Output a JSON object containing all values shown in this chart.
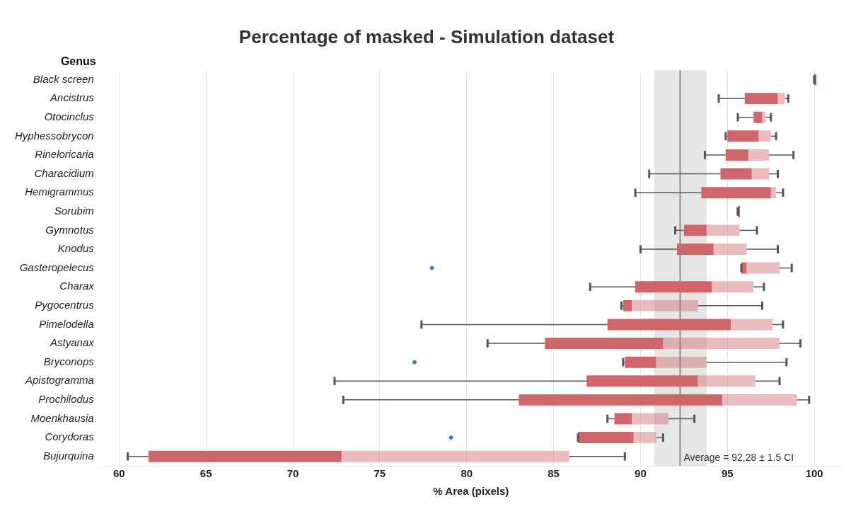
{
  "chart_data": {
    "type": "box",
    "orientation": "horizontal",
    "title": "Percentage of masked - Simulation dataset",
    "xlabel": "% Area (pixels)",
    "ylabel": "Genus",
    "categories": [
      "Black screen",
      "Ancistrus",
      "Otocinclus",
      "Hyphessobrycon",
      "Rineloricaria",
      "Characidium",
      "Hemigrammus",
      "Sorubim",
      "Gymnotus",
      "Knodus",
      "Gasteropelecus",
      "Charax",
      "Pygocentrus",
      "Pimelodella",
      "Astyanax",
      "Bryconops",
      "Apistogramma",
      "Prochilodus",
      "Moenkhausia",
      "Corydoras",
      "Bujurquina"
    ],
    "series": [
      {
        "color": "#d0666a",
        "boxes": [
          {
            "low": 100,
            "q1": 100,
            "median": 100,
            "q3": 100,
            "high": 100
          },
          {
            "low": 94.5,
            "q1": 96.0,
            "median": 97.9,
            "q3": 98.3,
            "high": 98.5
          },
          {
            "low": 95.6,
            "q1": 96.5,
            "median": 97.0,
            "q3": 97.2,
            "high": 97.5
          },
          {
            "low": 94.9,
            "q1": 95.0,
            "median": 96.8,
            "q3": 97.5,
            "high": 97.8
          },
          {
            "low": 93.7,
            "q1": 94.9,
            "median": 96.2,
            "q3": 97.4,
            "high": 98.8
          },
          {
            "low": 90.5,
            "q1": 94.6,
            "median": 96.4,
            "q3": 97.4,
            "high": 97.9
          },
          {
            "low": 89.7,
            "q1": 93.5,
            "median": 97.5,
            "q3": 97.8,
            "high": 98.2
          },
          {
            "low": 95.6,
            "q1": 95.6,
            "median": 95.6,
            "q3": 95.6,
            "high": 95.6
          },
          {
            "low": 92.0,
            "q1": 92.5,
            "median": 93.8,
            "q3": 95.7,
            "high": 96.7
          },
          {
            "low": 90.0,
            "q1": 92.1,
            "median": 94.2,
            "q3": 96.1,
            "high": 97.9
          },
          {
            "low": 95.8,
            "q1": 95.8,
            "median": 96.1,
            "q3": 98.0,
            "high": 98.7,
            "outliers": [
              78.0
            ]
          },
          {
            "low": 87.1,
            "q1": 89.7,
            "median": 94.1,
            "q3": 96.5,
            "high": 97.1
          },
          {
            "low": 88.9,
            "q1": 89.0,
            "median": 89.5,
            "q3": 93.3,
            "high": 97.0
          },
          {
            "low": 77.4,
            "q1": 88.1,
            "median": 95.2,
            "q3": 97.6,
            "high": 98.2
          },
          {
            "low": 81.2,
            "q1": 84.5,
            "median": 91.3,
            "q3": 98.0,
            "high": 99.2
          },
          {
            "low": 89.0,
            "q1": 89.1,
            "median": 90.9,
            "q3": 93.8,
            "high": 98.4,
            "outliers": [
              77.0
            ]
          },
          {
            "low": 72.4,
            "q1": 86.9,
            "median": 93.3,
            "q3": 96.6,
            "high": 98.0
          },
          {
            "low": 72.9,
            "q1": 83.0,
            "median": 94.7,
            "q3": 99.0,
            "high": 99.7
          },
          {
            "low": 88.1,
            "q1": 88.5,
            "median": 89.5,
            "q3": 91.6,
            "high": 93.1
          },
          {
            "low": 86.4,
            "q1": 86.4,
            "median": 89.6,
            "q3": 90.9,
            "high": 91.3,
            "outliers": [
              79.1
            ]
          },
          {
            "low": 60.5,
            "q1": 61.7,
            "median": 72.8,
            "q3": 85.9,
            "high": 89.1
          }
        ]
      }
    ],
    "xlim": [
      59,
      101.5
    ],
    "xticks": [
      60,
      65,
      70,
      75,
      80,
      85,
      90,
      95,
      100
    ],
    "grid": "x",
    "legend": false,
    "ref_lines": [
      {
        "axis": "x",
        "value": 92.28,
        "label": "Average = 92,28 ± 1.5 CI",
        "color": "#8c8c8c"
      }
    ],
    "bands": [
      {
        "axis": "x",
        "from": 90.8,
        "to": 93.8,
        "color": "#e6e6e6"
      }
    ]
  }
}
